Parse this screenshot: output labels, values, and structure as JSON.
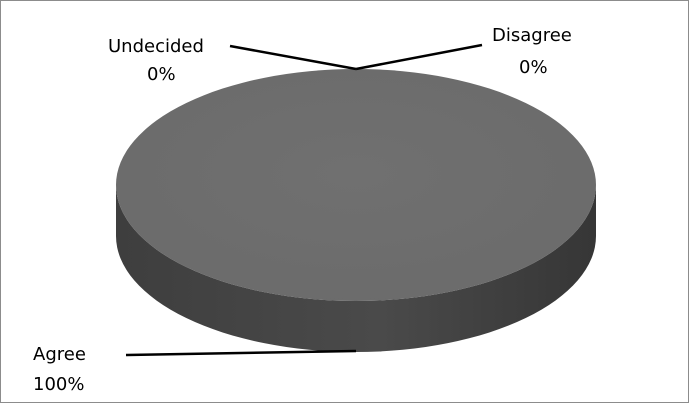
{
  "chart_data": {
    "type": "pie",
    "style": "3d",
    "title": "",
    "slices": [
      {
        "label": "Undecided",
        "value_label": "0%",
        "percent": 0
      },
      {
        "label": "Disagree",
        "value_label": "0%",
        "percent": 0
      },
      {
        "label": "Agree",
        "value_label": "100%",
        "percent": 100
      }
    ],
    "legend": "none",
    "colors": {
      "top": "#6b6b6b",
      "side": "#4a4a4a",
      "side_dark": "#363636",
      "leader": "#000000",
      "border": "#8c8c8c"
    }
  }
}
